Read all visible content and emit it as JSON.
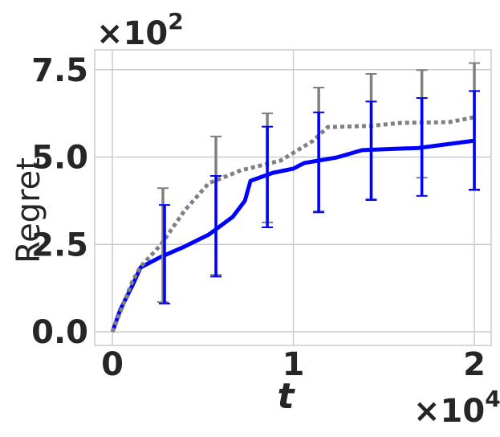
{
  "chart_data": {
    "type": "line",
    "y_label": "Regret",
    "x_label": "t",
    "x_offset": {
      "base": "×10",
      "exponent": "4"
    },
    "y_offset": {
      "base": "×10",
      "exponent": "2"
    },
    "xlim": [
      -0.098,
      2.093
    ],
    "ylim": [
      -0.39,
      8.07
    ],
    "xticks": [
      0,
      1,
      2
    ],
    "yticks": [
      {
        "value": 0,
        "label": "0.0"
      },
      2.5,
      {
        "value": 5,
        "label": "5.0"
      },
      7.5
    ],
    "grid": true,
    "series": [
      {
        "color": "#0000ff",
        "style": "solid",
        "x": [
          0,
          0.044,
          0.111,
          0.155,
          0.266,
          0.399,
          0.532,
          0.665,
          0.732,
          0.763,
          0.887,
          1.0,
          1.06,
          1.24,
          1.38,
          1.69,
          2.0
        ],
        "values": [
          0,
          0.64,
          1.33,
          1.84,
          2.14,
          2.44,
          2.78,
          3.29,
          3.75,
          4.32,
          4.55,
          4.67,
          4.83,
          4.99,
          5.2,
          5.26,
          5.47
        ],
        "errorbar": {
          "x": [
            0.288,
            0.572,
            0.856,
            1.14,
            1.43,
            1.71,
            2.0
          ],
          "values": [
            2.22,
            3.02,
            4.43,
            4.85,
            5.18,
            5.29,
            5.48
          ],
          "errors": [
            1.41,
            1.44,
            1.44,
            1.43,
            1.41,
            1.4,
            1.41
          ]
        }
      },
      {
        "color": "#808080",
        "style": "dotted",
        "x": [
          0,
          0.111,
          0.155,
          0.266,
          0.399,
          0.532,
          0.71,
          0.93,
          1.11,
          1.19,
          1.42,
          1.6,
          1.86,
          2.0
        ],
        "values": [
          0,
          1.45,
          1.86,
          2.48,
          3.47,
          4.25,
          4.62,
          4.9,
          5.47,
          5.86,
          5.89,
          5.98,
          6.0,
          6.14
        ],
        "errorbar": {
          "x": [
            0.279,
            0.572,
            0.856,
            1.14,
            1.43,
            1.71,
            2.0
          ],
          "values": [
            2.48,
            3.61,
            4.69,
            5.22,
            5.59,
            5.95,
            5.87
          ],
          "errors": [
            1.63,
            1.98,
            1.56,
            1.77,
            1.79,
            1.54,
            1.82
          ]
        }
      }
    ]
  }
}
